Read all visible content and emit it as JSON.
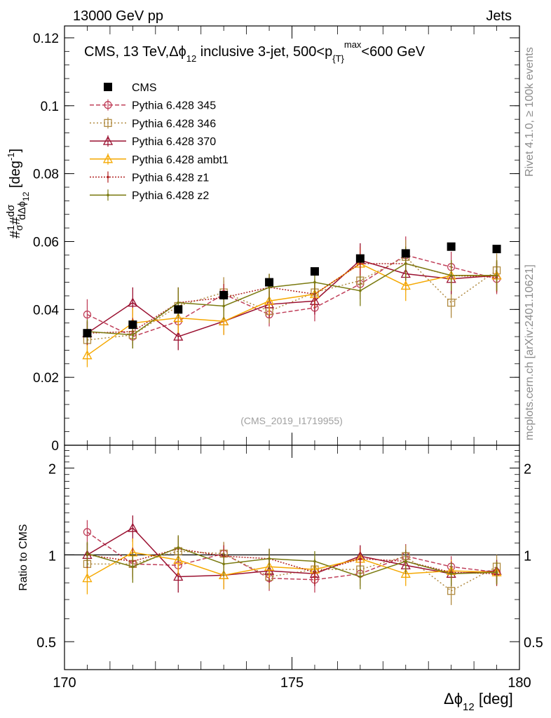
{
  "header": {
    "left": "13000 GeV pp",
    "right": "Jets"
  },
  "side_labels": {
    "rivet": "Rivet 4.1.0, ≥ 100k events",
    "mcplots": "mcplots.cern.ch [arXiv:2401.10621]"
  },
  "analysis_tag": "(CMS_2019_I1719955)",
  "colors": {
    "CMS": "#000000",
    "p345": "#c0405a",
    "p346": "#b08a40",
    "p370": "#9a1030",
    "ambt1": "#f5a800",
    "z1": "#b02020",
    "z2": "#7a7a10"
  },
  "chart_data": [
    {
      "type": "scatter",
      "panel": "main",
      "title": "CMS, 13 TeV,Δϕ₁₂ inclusive 3-jet, 500<p{T}max<600 GeV",
      "title_parts": {
        "a": "CMS, 13 TeV,",
        "b": "Δϕ",
        "c": "12",
        "d": " inclusive 3-jet, 500<p",
        "e": "{T}",
        "f": "max",
        "g": "<600 GeV"
      },
      "ylabel": "#1/σ #dσ/dΔϕ₁₂ [deg⁻¹]",
      "ylabel_parts": {
        "a": "#",
        "b": "1",
        "c": "σ",
        "d": "#",
        "e": "dσ",
        "f": "dΔϕ",
        "g": "12",
        "h": " [deg",
        "i": "-1",
        "j": "]"
      },
      "xlim": [
        170,
        180
      ],
      "ylim": [
        0,
        0.1235
      ],
      "yticks": [
        0,
        0.02,
        0.04,
        0.06,
        0.08,
        0.1,
        0.12
      ],
      "ytick_labels": [
        "0",
        "0.02",
        "0.04",
        "0.06",
        "0.08",
        "0.1",
        "0.12"
      ],
      "x": [
        170.5,
        171.5,
        172.5,
        173.5,
        174.5,
        175.5,
        176.5,
        177.5,
        178.5,
        179.5
      ],
      "series": [
        {
          "name": "CMS",
          "values": [
            0.033,
            0.0355,
            0.04,
            0.0442,
            0.048,
            0.0512,
            0.055,
            0.0565,
            0.0585,
            0.0578
          ],
          "errors": [
            0.001,
            0.001,
            0.001,
            0.001,
            0.001,
            0.001,
            0.001,
            0.001,
            0.001,
            0.001
          ]
        },
        {
          "name": "Pythia 6.428 345",
          "values": [
            0.0385,
            0.032,
            0.0365,
            0.0445,
            0.0385,
            0.0405,
            0.0475,
            0.056,
            0.0525,
            0.049
          ],
          "errors": [
            0.0045,
            0.0035,
            0.004,
            0.004,
            0.0035,
            0.004,
            0.0045,
            0.0055,
            0.0045,
            0.0045
          ]
        },
        {
          "name": "Pythia 6.428 346",
          "values": [
            0.031,
            0.0325,
            0.041,
            0.045,
            0.0395,
            0.045,
            0.0485,
            0.0555,
            0.042,
            0.0515
          ],
          "errors": [
            0.0035,
            0.004,
            0.0045,
            0.0045,
            0.0035,
            0.004,
            0.004,
            0.005,
            0.0045,
            0.005
          ]
        },
        {
          "name": "Pythia 6.428 370",
          "values": [
            0.033,
            0.042,
            0.032,
            0.0365,
            0.0415,
            0.0425,
            0.0545,
            0.0505,
            0.049,
            0.05
          ],
          "errors": [
            0.0035,
            0.0045,
            0.004,
            0.004,
            0.004,
            0.004,
            0.005,
            0.005,
            0.0045,
            0.0045
          ]
        },
        {
          "name": "Pythia 6.428 ambt1",
          "values": [
            0.0265,
            0.036,
            0.0375,
            0.0365,
            0.0425,
            0.0445,
            0.0535,
            0.047,
            0.05,
            0.05
          ],
          "errors": [
            0.0035,
            0.0045,
            0.0045,
            0.004,
            0.004,
            0.004,
            0.0045,
            0.0045,
            0.0045,
            0.0045
          ]
        },
        {
          "name": "Pythia 6.428 z1",
          "values": [
            0.033,
            0.0335,
            0.042,
            0.0435,
            0.0465,
            0.0445,
            0.0535,
            0.0535,
            0.05,
            0.0495
          ],
          "errors": [
            0.0035,
            0.004,
            0.0045,
            0.004,
            0.004,
            0.004,
            0.005,
            0.005,
            0.0045,
            0.0045
          ]
        },
        {
          "name": "Pythia 6.428 z2",
          "values": [
            0.0335,
            0.0325,
            0.042,
            0.041,
            0.0465,
            0.048,
            0.0455,
            0.0535,
            0.05,
            0.05
          ],
          "errors": [
            0.0035,
            0.004,
            0.0045,
            0.004,
            0.004,
            0.004,
            0.0045,
            0.005,
            0.0045,
            0.0045
          ]
        }
      ]
    },
    {
      "type": "scatter",
      "panel": "ratio",
      "ylabel": "Ratio to CMS",
      "xlabel": "Δϕ₁₂ [deg]",
      "xlabel_parts": {
        "a": "Δϕ",
        "b": "12",
        "c": " [deg]"
      },
      "scale": "log",
      "xlim": [
        170,
        180
      ],
      "ylim": [
        0.4,
        2.4
      ],
      "yticks": [
        0.5,
        1,
        2
      ],
      "ytick_labels": [
        "0.5",
        "1",
        "2"
      ],
      "xticks": [
        170,
        175,
        180
      ],
      "xtick_labels": [
        "170",
        "175",
        "180"
      ],
      "reference": 1,
      "x": [
        170.5,
        171.5,
        172.5,
        173.5,
        174.5,
        175.5,
        176.5,
        177.5,
        178.5,
        179.5
      ],
      "series": [
        {
          "name": "Pythia 6.428 345",
          "values": [
            1.2,
            0.93,
            0.92,
            1.01,
            0.83,
            0.82,
            0.86,
            0.99,
            0.91,
            0.87
          ],
          "errors": [
            0.12,
            0.1,
            0.1,
            0.09,
            0.08,
            0.08,
            0.08,
            0.1,
            0.08,
            0.08
          ]
        },
        {
          "name": "Pythia 6.428 346",
          "values": [
            0.93,
            0.93,
            1.03,
            1.01,
            0.84,
            0.89,
            0.89,
            0.99,
            0.75,
            0.91
          ],
          "errors": [
            0.1,
            0.11,
            0.11,
            0.1,
            0.08,
            0.08,
            0.08,
            0.09,
            0.08,
            0.09
          ]
        },
        {
          "name": "Pythia 6.428 370",
          "values": [
            1.0,
            1.24,
            0.84,
            0.85,
            0.88,
            0.86,
            0.99,
            0.92,
            0.86,
            0.88
          ],
          "errors": [
            0.1,
            0.13,
            0.1,
            0.09,
            0.08,
            0.08,
            0.09,
            0.09,
            0.08,
            0.08
          ]
        },
        {
          "name": "Pythia 6.428 ambt1",
          "values": [
            0.83,
            1.02,
            0.96,
            0.85,
            0.91,
            0.89,
            0.97,
            0.86,
            0.88,
            0.87
          ],
          "errors": [
            0.1,
            0.12,
            0.11,
            0.09,
            0.08,
            0.08,
            0.08,
            0.08,
            0.08,
            0.08
          ]
        },
        {
          "name": "Pythia 6.428 z1",
          "values": [
            1.0,
            0.95,
            1.05,
            0.99,
            0.97,
            0.87,
            0.97,
            0.95,
            0.87,
            0.86
          ],
          "errors": [
            0.1,
            0.11,
            0.11,
            0.09,
            0.08,
            0.08,
            0.09,
            0.09,
            0.08,
            0.08
          ]
        },
        {
          "name": "Pythia 6.428 z2",
          "values": [
            1.01,
            0.91,
            1.06,
            0.93,
            0.97,
            0.95,
            0.84,
            0.95,
            0.86,
            0.87
          ],
          "errors": [
            0.1,
            0.11,
            0.11,
            0.09,
            0.08,
            0.08,
            0.08,
            0.09,
            0.08,
            0.08
          ]
        }
      ]
    }
  ]
}
